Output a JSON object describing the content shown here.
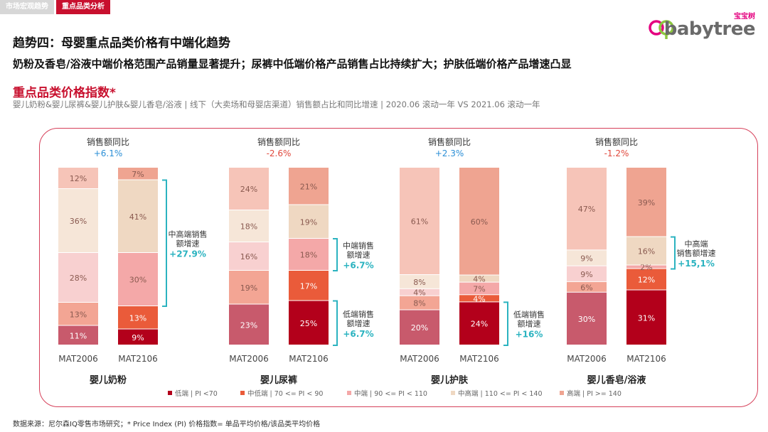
{
  "nav": {
    "tabs": [
      "市场宏观趋势",
      "重点品类分析"
    ],
    "active": 1
  },
  "logo": {
    "cn": "宝宝树",
    "text": "babytree"
  },
  "header": {
    "title": "趋势四：母婴重点品类价格有中端化趋势",
    "subtitle": "奶粉及香皂/浴液中端价格范围产品销量显著提升；尿裤中低端价格产品销售占比持续扩大；护肤低端价格产品增速凸显"
  },
  "section": {
    "title": "重点品类价格指数*",
    "desc": "婴儿奶粉&婴儿尿裤&婴儿护肤&婴儿香皂/浴液 | 线下（大卖场和母婴店渠道）销售额占比和同比增速 | 2020.06 滚动一年 VS 2021.06 滚动一年"
  },
  "source": "数据来源：尼尔森IQ零售市场研究；* Price Index (PI) 价格指数= 单品平均价格/该品类平均价格",
  "colors": {
    "bracket": "#2bb3c0",
    "growth": "#2bb3c0",
    "yoy_pos": "#2b8fd6",
    "yoy_neg": "#e0483c",
    "segments": [
      "#b3001b",
      "#ea5b3a",
      "#f4a8a8",
      "#efd8c2",
      "#efa491"
    ],
    "light": [
      "#c85a6c",
      "#f3a594",
      "#f8d0d0",
      "#f6e6d8",
      "#f6c4b8"
    ]
  },
  "chart_data": {
    "type": "stacked_bar",
    "unit": "%",
    "ylim": [
      0,
      100
    ],
    "yoy_label": "销售额同比",
    "series_names": [
      "低端 | PI <70",
      "中低端 | 70 <= PI < 90",
      "中端 | 90 <= PI < 110",
      "中高端 | 110 <= PI < 140",
      "高端 | PI >= 140"
    ],
    "groups": [
      {
        "name": "婴儿奶粉",
        "yoy": "+6.1%",
        "bars": [
          {
            "label": "MAT2006",
            "values": [
              11,
              13,
              28,
              36,
              12
            ]
          },
          {
            "label": "MAT2106",
            "values": [
              9,
              13,
              30,
              41,
              7
            ]
          }
        ],
        "annotations": [
          {
            "text": [
              "中高端销售",
              "额增速"
            ],
            "value": "+27.9%",
            "segments": [
              2,
              3
            ]
          }
        ]
      },
      {
        "name": "婴儿尿裤",
        "yoy": "-2.6%",
        "bars": [
          {
            "label": "MAT2006",
            "values": [
              23,
              19,
              16,
              18,
              24
            ]
          },
          {
            "label": "MAT2106",
            "values": [
              25,
              17,
              18,
              19,
              21
            ]
          }
        ],
        "annotations": [
          {
            "text": [
              "中端销售",
              "额增速"
            ],
            "value": "+6.7%",
            "segments": [
              2,
              2
            ]
          },
          {
            "text": [
              "低端销售",
              "额增速"
            ],
            "value": "+6.7%",
            "segments": [
              0,
              0
            ]
          }
        ]
      },
      {
        "name": "婴儿护肤",
        "yoy": "+2.3%",
        "bars": [
          {
            "label": "MAT2006",
            "values": [
              20,
              8,
              4,
              8,
              61
            ]
          },
          {
            "label": "MAT2106",
            "values": [
              24,
              4,
              7,
              4,
              60
            ]
          }
        ],
        "annotations": [
          {
            "text": [
              "低端销售",
              "额增速"
            ],
            "value": "+16%",
            "segments": [
              0,
              0
            ]
          }
        ]
      },
      {
        "name": "婴儿香皂/浴液",
        "yoy": "-1.2%",
        "bars": [
          {
            "label": "MAT2006",
            "values": [
              30,
              6,
              9,
              9,
              47
            ]
          },
          {
            "label": "MAT2106",
            "values": [
              31,
              12,
              2,
              16,
              39
            ]
          }
        ],
        "annotations": [
          {
            "text": [
              "中高端",
              "销售额增速"
            ],
            "value": "+15,1%",
            "segments": [
              2,
              3
            ]
          }
        ]
      }
    ]
  }
}
